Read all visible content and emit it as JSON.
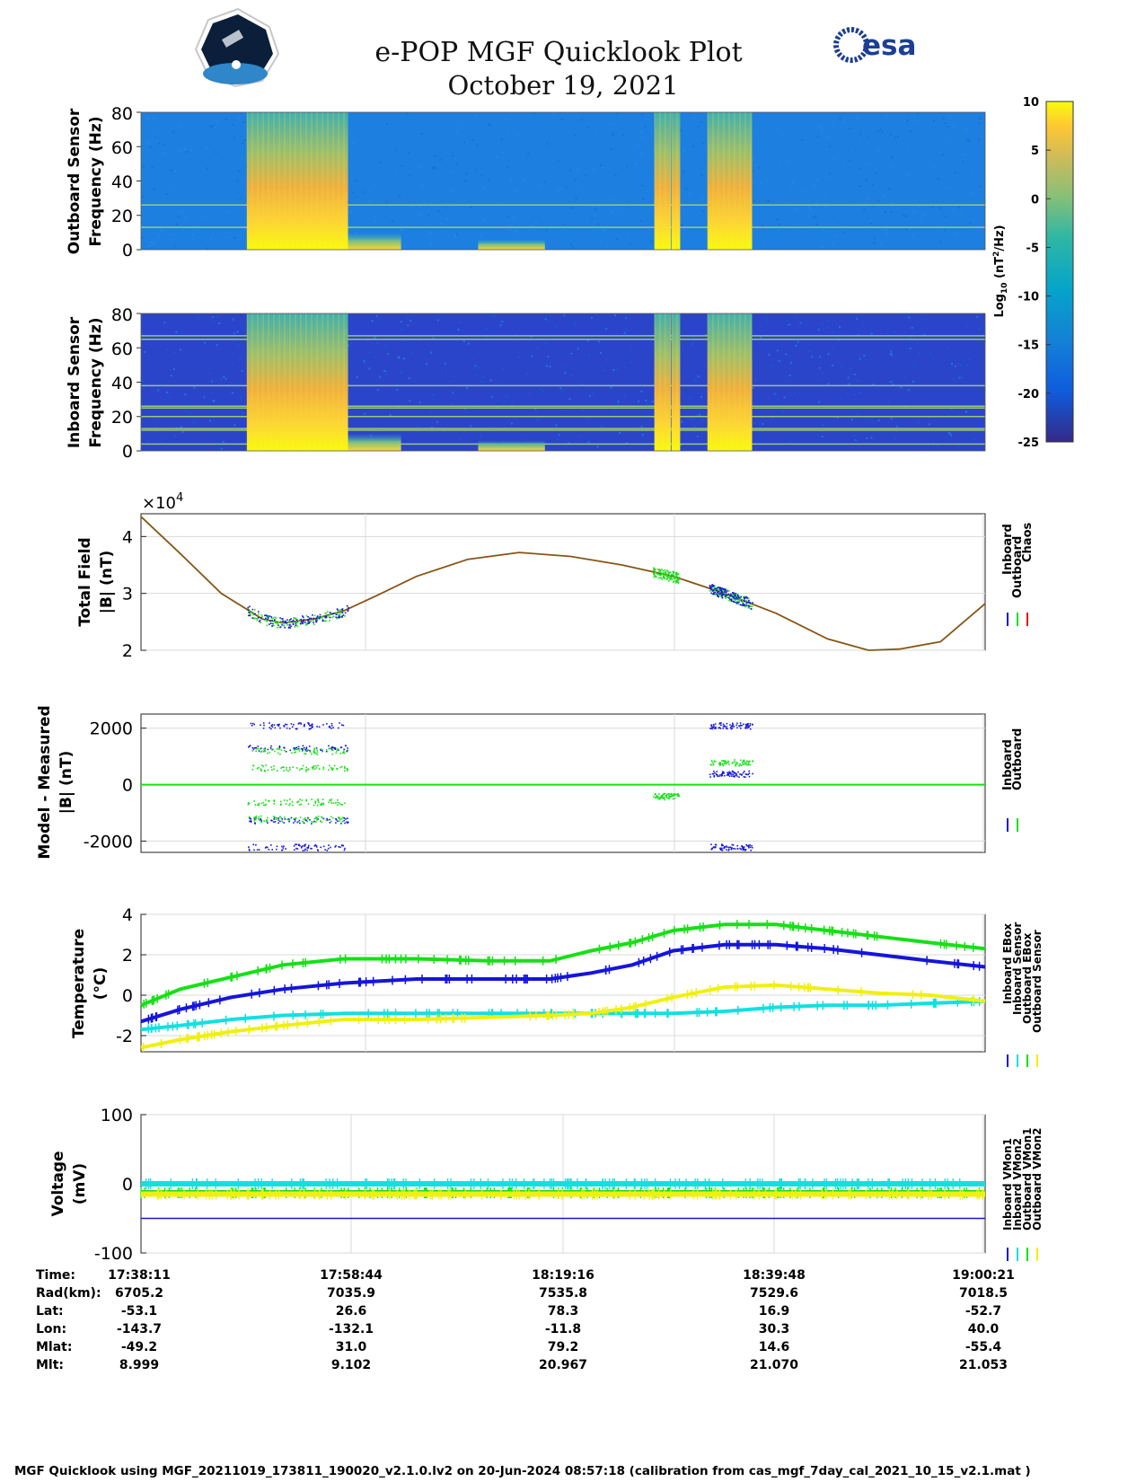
{
  "header": {
    "title": "e-POP MGF Quicklook Plot",
    "date": "October 19, 2021",
    "left_logo": "cassiope-mission-logo",
    "right_logo_text": "esa"
  },
  "colors": {
    "inboard": "#1515dc",
    "outboard": "#16e016",
    "chaos": "#e01818",
    "inboard_ebox": "#1515dc",
    "inboard_sensor": "#12e0e0",
    "outboard_ebox": "#16e016",
    "outboard_sensor": "#f0f010",
    "model_line": "#6b6b14"
  },
  "colorbar": {
    "label": "Log10 (nT2/Hz)",
    "ticks": [
      "10",
      "5",
      "0",
      "-5",
      "-10",
      "-15",
      "-20",
      "-25"
    ],
    "range": [
      -25,
      10
    ],
    "colormap": "parula"
  },
  "footer": {
    "caption": "MGF Quicklook using MGF_20211019_173811_190020_v2.1.0.lv2 on 20-Jun-2024 08:57:18 (calibration from cas_mgf_7day_cal_2021_10_15_v2.1.mat )"
  },
  "orbit_table": {
    "row_labels": [
      "Time:",
      "Rad(km):",
      "Lat:",
      "Lon:",
      "Mlat:",
      "Mlt:"
    ],
    "columns": [
      [
        "17:38:11",
        "6705.2",
        "-53.1",
        "-143.7",
        "-49.2",
        "8.999"
      ],
      [
        "17:58:44",
        "7035.9",
        "26.6",
        "-132.1",
        "31.0",
        "9.102"
      ],
      [
        "18:19:16",
        "7535.8",
        "78.3",
        "-11.8",
        "79.2",
        "20.967"
      ],
      [
        "18:39:48",
        "7529.6",
        "16.9",
        "30.3",
        "14.6",
        "21.070"
      ],
      [
        "19:00:21",
        "7018.5",
        "-52.7",
        "40.0",
        "-55.4",
        "21.053"
      ]
    ]
  },
  "chart_data": [
    {
      "type": "heatmap",
      "ylabel": "Outboard Sensor Frequency (Hz)",
      "ylabel_lines": [
        "Outboard Sensor",
        "Frequency (Hz)"
      ],
      "yticks": [
        "80",
        "60",
        "40",
        "20",
        "0"
      ],
      "ylim": [
        0,
        80
      ],
      "xlim": [
        "17:38:11",
        "19:00:21"
      ],
      "background_log_power": -12,
      "constant_lines_hz": [
        13,
        26
      ],
      "broadband_bursts": [
        {
          "start": "17:48:30",
          "end": "17:58:20",
          "fmax_hz": 80,
          "log_power": 6
        },
        {
          "start": "18:28:10",
          "end": "18:29:45",
          "fmax_hz": 80,
          "log_power": 6
        },
        {
          "start": "18:29:50",
          "end": "18:30:40",
          "fmax_hz": 80,
          "log_power": 6
        },
        {
          "start": "18:33:20",
          "end": "18:37:40",
          "fmax_hz": 80,
          "log_power": 6
        }
      ],
      "low_freq_features": [
        {
          "start": "17:58:20",
          "end": "18:03:30",
          "fmax_hz": 10
        },
        {
          "start": "18:11:00",
          "end": "18:17:30",
          "fmax_hz": 6
        }
      ]
    },
    {
      "type": "heatmap",
      "ylabel": "Inboard Sensor Frequency (Hz)",
      "ylabel_lines": [
        "Inboard Sensor",
        "Frequency (Hz)"
      ],
      "yticks": [
        "80",
        "60",
        "40",
        "20",
        "0"
      ],
      "ylim": [
        0,
        80
      ],
      "xlim": [
        "17:38:11",
        "19:00:21"
      ],
      "background_log_power": -20,
      "constant_lines_hz": [
        4,
        12,
        13,
        20,
        25,
        26,
        38,
        65,
        67
      ],
      "broadband_bursts": [
        {
          "start": "17:48:30",
          "end": "17:58:20",
          "fmax_hz": 80,
          "log_power": 6
        },
        {
          "start": "18:28:10",
          "end": "18:29:45",
          "fmax_hz": 80,
          "log_power": 6
        },
        {
          "start": "18:29:50",
          "end": "18:30:40",
          "fmax_hz": 80,
          "log_power": 6
        },
        {
          "start": "18:33:20",
          "end": "18:37:40",
          "fmax_hz": 80,
          "log_power": 6
        }
      ],
      "low_freq_features": [
        {
          "start": "17:58:20",
          "end": "18:03:30",
          "fmax_hz": 10
        },
        {
          "start": "18:11:00",
          "end": "18:17:30",
          "fmax_hz": 6
        }
      ]
    },
    {
      "type": "line",
      "ylabel": "Total Field |B| (nT)",
      "ylabel_lines": [
        "Total Field",
        "|B| (nT)"
      ],
      "exponent_label": "×10^4",
      "exponent_parts": {
        "base": "×10",
        "power": "4"
      },
      "yticks": [
        "4",
        "3",
        "2"
      ],
      "ylim": [
        2,
        4.4
      ],
      "y_unit_scale": 10000,
      "xlim": [
        "17:38:11",
        "19:00:21"
      ],
      "grid": true,
      "legend_position": "right",
      "legend": [
        "Inboard",
        "Outboard",
        "Chaos"
      ],
      "series": [
        {
          "name": "Chaos",
          "color": "#e01818",
          "x": [
            "17:38:11",
            "17:42:00",
            "17:46:00",
            "17:50:00",
            "17:52:00",
            "17:55:00",
            "17:58:00",
            "18:01:00",
            "18:05:00",
            "18:10:00",
            "18:15:00",
            "18:20:00",
            "18:25:00",
            "18:30:00",
            "18:35:00",
            "18:40:00",
            "18:45:00",
            "18:49:00",
            "18:52:00",
            "18:56:00",
            "19:00:21"
          ],
          "values": [
            4.35,
            3.7,
            3.0,
            2.55,
            2.48,
            2.55,
            2.7,
            2.95,
            3.3,
            3.6,
            3.72,
            3.65,
            3.5,
            3.3,
            3.0,
            2.65,
            2.2,
            2.0,
            2.02,
            2.15,
            2.82
          ]
        },
        {
          "name": "Outboard",
          "color": "#16e016",
          "segments": [
            [
              "17:48:30",
              "17:58:20"
            ],
            [
              "18:28:00",
              "18:30:30"
            ],
            [
              "18:33:30",
              "18:37:40"
            ]
          ]
        },
        {
          "name": "Inboard",
          "color": "#1515dc",
          "segments": [
            [
              "17:48:30",
              "17:58:20"
            ],
            [
              "18:33:30",
              "18:37:40"
            ]
          ]
        }
      ]
    },
    {
      "type": "scatter",
      "ylabel": "Model - Measured |B| (nT)",
      "ylabel_lines": [
        "Model - Measured",
        "|B| (nT)"
      ],
      "yticks": [
        "2000",
        "0",
        "-2000"
      ],
      "ylim": [
        -2400,
        2500
      ],
      "xlim": [
        "17:38:11",
        "19:00:21"
      ],
      "grid": true,
      "legend_position": "right",
      "legend": [
        "Inboard",
        "Outboard"
      ],
      "series": [
        {
          "name": "Inboard",
          "color": "#1515dc",
          "bands": [
            [
              1300,
              "17:48:30",
              "17:58:20"
            ],
            [
              2100,
              "17:48:30",
              "17:58:20"
            ],
            [
              -1250,
              "17:48:30",
              "17:58:20"
            ],
            [
              -2200,
              "17:48:30",
              "17:58:20"
            ],
            [
              400,
              "18:33:30",
              "18:37:40"
            ],
            [
              2100,
              "18:33:30",
              "18:37:40"
            ],
            [
              -2200,
              "18:33:30",
              "18:37:40"
            ]
          ]
        },
        {
          "name": "Outboard",
          "color": "#16e016",
          "bands": [
            [
              0,
              "17:38:11",
              "19:00:21"
            ],
            [
              1200,
              "17:48:30",
              "17:58:20"
            ],
            [
              600,
              "17:48:30",
              "17:58:20"
            ],
            [
              -600,
              "17:48:30",
              "17:58:20"
            ],
            [
              -1200,
              "17:48:30",
              "17:58:20"
            ],
            [
              800,
              "18:33:30",
              "18:37:40"
            ],
            [
              -400,
              "18:28:00",
              "18:30:30"
            ]
          ]
        }
      ]
    },
    {
      "type": "line",
      "ylabel": "Temperature (°C)",
      "ylabel_lines": [
        "Temperature",
        "(°C)"
      ],
      "yticks": [
        "4",
        "2",
        "0",
        "-2"
      ],
      "ylim": [
        -2.8,
        4
      ],
      "xlim": [
        "17:38:11",
        "19:00:21"
      ],
      "grid": true,
      "legend_position": "right",
      "legend": [
        "Inboard EBox",
        "Inboard Sensor",
        "Outboard EBox",
        "Outboard Sensor"
      ],
      "x": [
        "17:38:11",
        "17:42:00",
        "17:47:00",
        "17:52:00",
        "17:58:00",
        "18:05:00",
        "18:12:00",
        "18:18:00",
        "18:22:00",
        "18:26:00",
        "18:30:00",
        "18:35:00",
        "18:40:00",
        "18:45:00",
        "18:50:00",
        "18:55:00",
        "19:00:21"
      ],
      "series": [
        {
          "name": "Inboard EBox",
          "color": "#1515dc",
          "values": [
            -1.3,
            -0.7,
            -0.1,
            0.3,
            0.6,
            0.8,
            0.8,
            0.8,
            1.1,
            1.5,
            2.2,
            2.5,
            2.5,
            2.3,
            2.0,
            1.7,
            1.4
          ]
        },
        {
          "name": "Inboard Sensor",
          "color": "#12e0e0",
          "values": [
            -1.7,
            -1.5,
            -1.2,
            -1.0,
            -0.9,
            -0.9,
            -0.9,
            -0.9,
            -0.9,
            -0.9,
            -0.9,
            -0.8,
            -0.6,
            -0.5,
            -0.5,
            -0.4,
            -0.3
          ]
        },
        {
          "name": "Outboard EBox",
          "color": "#16e016",
          "values": [
            -0.5,
            0.3,
            0.9,
            1.5,
            1.8,
            1.8,
            1.7,
            1.7,
            2.2,
            2.6,
            3.2,
            3.5,
            3.5,
            3.2,
            2.9,
            2.6,
            2.3
          ]
        },
        {
          "name": "Outboard Sensor",
          "color": "#f0f010",
          "values": [
            -2.6,
            -2.2,
            -1.8,
            -1.5,
            -1.2,
            -1.2,
            -1.1,
            -1.0,
            -0.9,
            -0.6,
            -0.1,
            0.4,
            0.5,
            0.3,
            0.1,
            0.0,
            -0.3
          ]
        }
      ]
    },
    {
      "type": "line",
      "ylabel": "Voltage (mV)",
      "ylabel_lines": [
        "Voltage",
        "(mV)"
      ],
      "yticks": [
        "100",
        "0",
        "-100"
      ],
      "ylim": [
        -100,
        100
      ],
      "xlim": [
        "17:38:11",
        "19:00:21"
      ],
      "grid": true,
      "legend_position": "right",
      "legend": [
        "Inboard VMon1",
        "Inboard VMon2",
        "Outboard VMon1",
        "Outboard VMon2"
      ],
      "series": [
        {
          "name": "Inboard VMon1",
          "color": "#1515dc",
          "value": -50
        },
        {
          "name": "Inboard VMon2",
          "color": "#12e0e0",
          "value": 0
        },
        {
          "name": "Outboard VMon1",
          "color": "#16e016",
          "value": -13
        },
        {
          "name": "Outboard VMon2",
          "color": "#f0f010",
          "value": -15
        }
      ]
    }
  ]
}
